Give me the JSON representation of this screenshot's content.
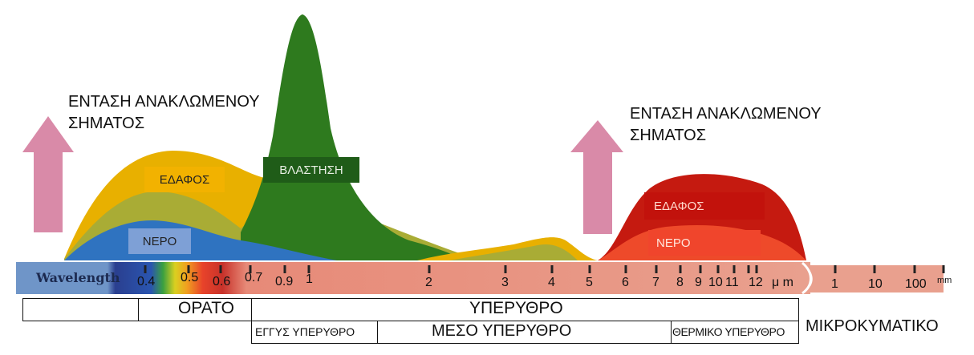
{
  "left_panel": {
    "intensity_label_line1": "ΕΝΤΑΣΗ ΑΝΑΚΛΩΜΕΝΟΥ",
    "intensity_label_line2": "ΣΗΜΑΤΟΣ",
    "tag_soil": "ΕΔΑΦΟΣ",
    "tag_vegetation": "ΒΛΑΣΤΗΣΗ",
    "tag_water": "ΝΕΡΟ"
  },
  "right_panel": {
    "intensity_label_line1": "ΕΝΤΑΣΗ ΑΝΑΚΛΩΜΕΝΟΥ",
    "intensity_label_line2": "ΣΗΜΑΤΟΣ",
    "tag_soil": "ΕΔΑΦΟΣ",
    "tag_water": "ΝΕΡΟ"
  },
  "wavelength_bar": {
    "label": "Wavelength",
    "ticks": [
      "0.4",
      "0.5",
      "0.6",
      "0.7",
      "0.9",
      "1",
      "2",
      "3",
      "4",
      "5",
      "6",
      "7",
      "8",
      "9",
      "10",
      "11",
      "12",
      "μ m"
    ],
    "micro_ticks": [
      "1",
      "10",
      "100",
      "mm"
    ]
  },
  "regions": {
    "visible": "ΟΡΑΤΟ",
    "infrared": "ΥΠΕΡΥΘΡΟ",
    "near_ir": "ΕΓΓΥΣ ΥΠΕΡΥΘΡΟ",
    "mid_ir": "ΜΕΣΟ ΥΠΕΡΥΘΡΟ",
    "thermal_ir": "ΘΕΡΜΙΚΟ ΥΠΕΡΥΘΡΟ",
    "microwave": "ΜΙΚΡΟΚΥΜΑΤΙΚΟ"
  },
  "colors": {
    "arrow": "#d98aa8",
    "soil_left": "#e8b000",
    "vegetation": "#2e7a1e",
    "water_left": "#2f73c0",
    "soil_right": "#c51a10",
    "water_right": "#ee4a2a",
    "bar": "#e9a08e"
  }
}
